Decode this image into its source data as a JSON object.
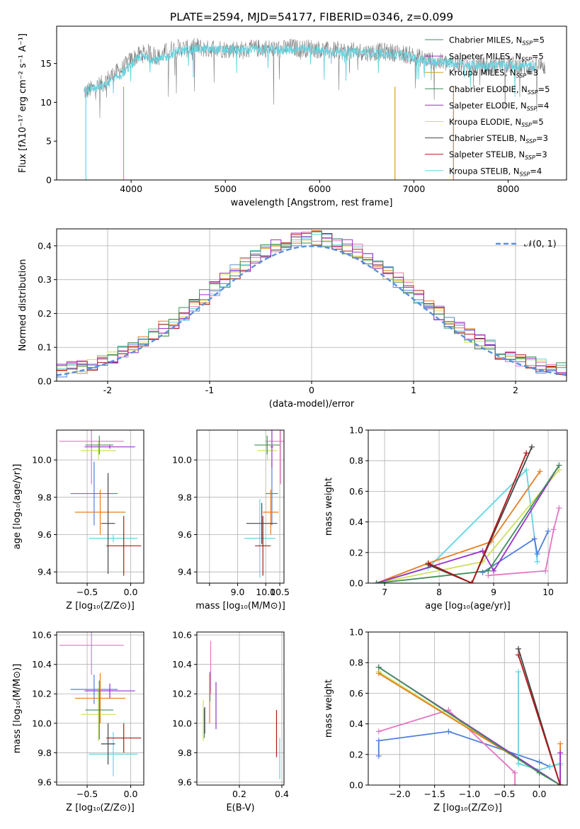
{
  "title": "PLATE=2594, MJD=54177, FIBERID=0346, z=0.099",
  "palette": [
    "#7f7f7f",
    "#e67e22",
    "#d4a017",
    "#3f8f5a",
    "#9b30c8",
    "#cfe05a",
    "#444444",
    "#b01818",
    "#66d3e0",
    "#e377c2",
    "#4f7fdc"
  ],
  "chart_data": [
    {
      "id": "spectrum",
      "type": "line",
      "title": "PLATE=2594, MJD=54177, FIBERID=0346, z=0.099",
      "xlabel": "wavelength [Angstrom, rest frame]",
      "ylabel": "Flux [fλ10⁻¹⁷ erg cm⁻² s⁻¹ A⁻¹]",
      "xlim": [
        3210,
        8620
      ],
      "ylim": [
        0,
        19.8
      ],
      "xticks": [
        4000,
        5000,
        6000,
        7000,
        8000
      ],
      "yticks": [
        0,
        5,
        10,
        15
      ],
      "grid": false,
      "legend_placement": "right",
      "legend": [
        {
          "label": "Chabrier MILES, N_SSP=5",
          "text": "Chabrier MILES, N",
          "sub": "SSP",
          "tail": "=5",
          "color": "#3f8f5a"
        },
        {
          "label": "Salpeter MILES, N_SSP=5",
          "text": "Salpeter MILES, N",
          "sub": "SSP",
          "tail": "=5",
          "color": "#9b30c8"
        },
        {
          "label": "Kroupa MILES, N_SSP=3",
          "text": "Kroupa MILES, N",
          "sub": "SSP",
          "tail": "=3",
          "color": "#d4a017"
        },
        {
          "label": "Chabrier ELODIE, N_SSP=5",
          "text": "Chabrier ELODIE, N",
          "sub": "SSP",
          "tail": "=5",
          "color": "#3f8f5a"
        },
        {
          "label": "Salpeter ELODIE, N_SSP=4",
          "text": "Salpeter ELODIE, N",
          "sub": "SSP",
          "tail": "=4",
          "color": "#9b30c8"
        },
        {
          "label": "Kroupa ELODIE, N_SSP=5",
          "text": "Kroupa ELODIE, N",
          "sub": "SSP",
          "tail": "=5",
          "color": "#cfe05a"
        },
        {
          "label": "Chabrier STELIB, N_SSP=3",
          "text": "Chabrier STELIB, N",
          "sub": "SSP",
          "tail": "=3",
          "color": "#444444"
        },
        {
          "label": "Salpeter STELIB, N_SSP=3",
          "text": "Salpeter STELIB, N",
          "sub": "SSP",
          "tail": "=3",
          "color": "#b01818"
        },
        {
          "label": "Kroupa STELIB, N_SSP=4",
          "text": "Kroupa STELIB, N",
          "sub": "SSP",
          "tail": "=4",
          "color": "#66d3e0"
        }
      ],
      "series": [
        {
          "color": "#7f7f7f",
          "x": [
            3500,
            3600,
            3700,
            3800,
            3900,
            4000,
            4100,
            4200,
            4300,
            4400,
            4500,
            4600,
            4700,
            4800,
            4900,
            5000,
            5100,
            5200,
            5300,
            5400,
            5500,
            5600,
            5700,
            5800,
            5900,
            6000,
            6100,
            6200,
            6300,
            6400,
            6500,
            6600,
            6700,
            6800,
            6900,
            7000,
            7100,
            7200,
            7300,
            7400,
            7500,
            7600,
            7700,
            7800,
            7900,
            8000,
            8100,
            8200,
            8300,
            8400
          ],
          "y": [
            11.3,
            11.8,
            12.4,
            13.5,
            14.2,
            15.5,
            16.2,
            16.4,
            15.8,
            16.8,
            17.0,
            16.9,
            17.2,
            16.8,
            17.1,
            16.8,
            16.9,
            16.7,
            16.9,
            17.0,
            16.9,
            16.8,
            17.1,
            16.9,
            17.0,
            16.8,
            16.6,
            16.7,
            16.5,
            16.6,
            16.4,
            16.5,
            16.5,
            16.4,
            16.2,
            16.0,
            15.6,
            15.3,
            15.1,
            15.0,
            14.9,
            14.8,
            14.8,
            14.6,
            14.8,
            14.9,
            14.7,
            14.5,
            14.7,
            14.6
          ]
        },
        {
          "color": "#66d3e0",
          "x": [
            3500,
            3700,
            3900,
            4100,
            4300,
            4500,
            4700,
            4900,
            5100,
            5300,
            5500,
            5700,
            5900,
            6100,
            6300,
            6500,
            6700,
            6900,
            7100,
            7300,
            7500,
            7700,
            7900,
            8100,
            8300
          ],
          "y": [
            11.6,
            12.0,
            13.6,
            15.9,
            15.4,
            16.6,
            16.9,
            16.8,
            16.7,
            16.8,
            16.7,
            16.8,
            16.8,
            16.5,
            16.4,
            16.4,
            16.3,
            16.0,
            15.4,
            15.1,
            14.9,
            14.7,
            14.8,
            14.7,
            14.6
          ]
        }
      ],
      "vlines": [
        {
          "x": 3520,
          "color": "#66d3e0"
        },
        {
          "x": 3920,
          "color": "#d4a017"
        },
        {
          "x": 6800,
          "color": "#d4a017"
        },
        {
          "x": 7420,
          "color": "#e67e22"
        }
      ]
    },
    {
      "id": "residuals",
      "type": "histogram",
      "xlabel": "(data-model)/error",
      "ylabel": "Normed distribution",
      "xlim": [
        -2.5,
        2.5
      ],
      "ylim": [
        0,
        0.45
      ],
      "xticks": [
        -2,
        -1,
        0,
        1,
        2
      ],
      "yticks": [
        0.0,
        0.1,
        0.2,
        0.3,
        0.4
      ],
      "grid": true,
      "legend_placement": "top-right",
      "legend": [
        {
          "label": "𝒩(0, 1)",
          "color": "#5b8fdc"
        }
      ],
      "bin_width": 0.1,
      "series": [
        {
          "color": "#4f7fdc"
        },
        {
          "color": "#e67e22"
        },
        {
          "color": "#e377c2"
        },
        {
          "color": "#cfe05a"
        },
        {
          "color": "#66d3e0"
        },
        {
          "color": "#b01818"
        },
        {
          "color": "#9b30c8"
        },
        {
          "color": "#3f8f5a"
        }
      ],
      "curve": {
        "label": "𝒩(0, 1)",
        "mean": 0,
        "sigma": 1,
        "color": "#5b8fdc"
      }
    },
    {
      "id": "age-vs-z",
      "type": "errorbar",
      "xlabel": "Z [log₁₀(Z/Z⊙)]",
      "ylabel": "age  [log₁₀(age/yr)]",
      "xlim": [
        -0.85,
        0.15
      ],
      "ylim": [
        9.34,
        10.16
      ],
      "xticks": [
        -0.5,
        0.0
      ],
      "xticklabels": [
        "−0.5",
        "0.0"
      ],
      "yticks": [
        9.4,
        9.6,
        9.8,
        10.0
      ],
      "grid": true,
      "points": [
        {
          "x": -0.42,
          "y": 9.82,
          "xerr": 0.27,
          "yerr": 0.17,
          "color": "#4f7fdc"
        },
        {
          "x": -0.35,
          "y": 9.72,
          "xerr": 0.29,
          "yerr": 0.12,
          "color": "#e67e22"
        },
        {
          "x": -0.45,
          "y": 10.1,
          "xerr": 0.37,
          "yerr": 0.23,
          "color": "#e377c2"
        },
        {
          "x": -0.37,
          "y": 10.05,
          "xerr": 0.2,
          "yerr": 0.05,
          "color": "#cfe05a"
        },
        {
          "x": -0.2,
          "y": 9.58,
          "xerr": 0.28,
          "yerr": 0.02,
          "color": "#66d3e0"
        },
        {
          "x": -0.08,
          "y": 9.54,
          "xerr": 0.2,
          "yerr": 0.16,
          "color": "#b01818"
        },
        {
          "x": -0.24,
          "y": 10.07,
          "xerr": 0.29,
          "yerr": 0.01,
          "color": "#9b30c8"
        },
        {
          "x": -0.36,
          "y": 10.08,
          "xerr": 0.16,
          "yerr": 0.05,
          "color": "#3f8f5a"
        },
        {
          "x": -0.26,
          "y": 9.66,
          "xerr": 0.08,
          "yerr": 0.27,
          "color": "#444444"
        }
      ]
    },
    {
      "id": "age-vs-mass",
      "type": "errorbar",
      "xlabel": "mass [log₁₀(M/M⊙)]",
      "ylabel": "",
      "xlim": [
        7.55,
        10.65
      ],
      "ylim": [
        9.34,
        10.16
      ],
      "xticks": [
        8,
        9,
        10,
        10.5
      ],
      "xticklabels": [
        "",
        "9.0",
        "10.0",
        "10.5"
      ],
      "yticks": [
        9.4,
        9.6,
        9.8,
        10.0
      ],
      "grid": true,
      "points": [
        {
          "x": 10.22,
          "y": 9.82,
          "xerr": 0.22,
          "yerr": 0.17,
          "color": "#4f7fdc"
        },
        {
          "x": 10.18,
          "y": 9.72,
          "xerr": 0.28,
          "yerr": 0.12,
          "color": "#e67e22"
        },
        {
          "x": 10.53,
          "y": 10.1,
          "xerr": 0.55,
          "yerr": 0.23,
          "color": "#e377c2"
        },
        {
          "x": 10.06,
          "y": 10.05,
          "xerr": 0.35,
          "yerr": 0.05,
          "color": "#cfe05a"
        },
        {
          "x": 9.79,
          "y": 9.58,
          "xerr": 0.55,
          "yerr": 0.21,
          "color": "#66d3e0"
        },
        {
          "x": 9.9,
          "y": 9.54,
          "xerr": 0.28,
          "yerr": 0.16,
          "color": "#b01818"
        },
        {
          "x": 10.22,
          "y": 10.07,
          "xerr": 0.05,
          "yerr": 0.11,
          "color": "#9b30c8"
        },
        {
          "x": 10.05,
          "y": 10.08,
          "xerr": 0.45,
          "yerr": 0.05,
          "color": "#3f8f5a"
        },
        {
          "x": 9.86,
          "y": 9.66,
          "xerr": 0.55,
          "yerr": 0.11,
          "color": "#444444"
        }
      ]
    },
    {
      "id": "weight-vs-age",
      "type": "line",
      "xlabel": "age  [log₁₀(age/yr)]",
      "ylabel": "mass weight",
      "xlim": [
        6.7,
        10.35
      ],
      "ylim": [
        0,
        1.0
      ],
      "xticks": [
        7,
        8,
        9,
        10
      ],
      "yticks": [
        0.0,
        0.2,
        0.4,
        0.6,
        0.8,
        1.0
      ],
      "grid": true,
      "series": [
        {
          "color": "#66d3e0",
          "x": [
            6.85,
            7.8,
            9.6,
            9.8
          ],
          "y": [
            0.0,
            0.1,
            0.74,
            0.14
          ]
        },
        {
          "color": "#4f7fdc",
          "x": [
            8.8,
            9.75,
            9.8,
            10.0
          ],
          "y": [
            0.07,
            0.29,
            0.19,
            0.34
          ]
        },
        {
          "color": "#e67e22",
          "x": [
            6.85,
            7.8,
            8.95,
            9.85
          ],
          "y": [
            0.0,
            0.13,
            0.27,
            0.73
          ]
        },
        {
          "color": "#e377c2",
          "x": [
            8.9,
            9.95,
            10.1,
            10.2
          ],
          "y": [
            0.05,
            0.08,
            0.35,
            0.49
          ]
        },
        {
          "color": "#cfe05a",
          "x": [
            6.85,
            8.8,
            10.2
          ],
          "y": [
            0.0,
            0.14,
            0.74
          ]
        },
        {
          "color": "#9b30c8",
          "x": [
            6.85,
            8.8,
            9.0,
            10.2
          ],
          "y": [
            0.0,
            0.21,
            0.08,
            0.77
          ]
        },
        {
          "color": "#3f8f5a",
          "x": [
            6.85,
            8.9,
            10.2
          ],
          "y": [
            0.0,
            0.08,
            0.77
          ]
        },
        {
          "color": "#444444",
          "x": [
            7.8,
            8.6,
            9.7
          ],
          "y": [
            0.12,
            0.0,
            0.89
          ]
        },
        {
          "color": "#b01818",
          "x": [
            7.8,
            8.6,
            9.6
          ],
          "y": [
            0.13,
            0.0,
            0.85
          ]
        }
      ]
    },
    {
      "id": "mass-vs-z",
      "type": "errorbar",
      "xlabel": "Z [log₁₀(Z/Z⊙)]",
      "ylabel": "mass [log₁₀(M/M⊙)]",
      "xlim": [
        -0.85,
        0.15
      ],
      "ylim": [
        9.58,
        10.62
      ],
      "xticks": [
        -0.5,
        0.0
      ],
      "xticklabels": [
        "−0.5",
        "0.0"
      ],
      "yticks": [
        9.6,
        9.8,
        10.0,
        10.2,
        10.4,
        10.6
      ],
      "grid": true,
      "points": [
        {
          "x": -0.42,
          "y": 10.23,
          "xerr": 0.27,
          "yerr": 0.1,
          "color": "#4f7fdc"
        },
        {
          "x": -0.35,
          "y": 10.17,
          "xerr": 0.29,
          "yerr": 0.17,
          "color": "#e67e22"
        },
        {
          "x": -0.45,
          "y": 10.53,
          "xerr": 0.37,
          "yerr": 0.2,
          "color": "#e377c2"
        },
        {
          "x": -0.37,
          "y": 10.06,
          "xerr": 0.2,
          "yerr": 0.18,
          "color": "#cfe05a"
        },
        {
          "x": -0.2,
          "y": 9.79,
          "xerr": 0.28,
          "yerr": 0.15,
          "color": "#66d3e0"
        },
        {
          "x": -0.08,
          "y": 9.9,
          "xerr": 0.2,
          "yerr": 0.1,
          "color": "#b01818"
        },
        {
          "x": -0.24,
          "y": 10.22,
          "xerr": 0.29,
          "yerr": 0.05,
          "color": "#9b30c8"
        },
        {
          "x": -0.36,
          "y": 10.09,
          "xerr": 0.16,
          "yerr": 0.2,
          "color": "#3f8f5a"
        },
        {
          "x": -0.26,
          "y": 9.86,
          "xerr": 0.08,
          "yerr": 0.14,
          "color": "#444444"
        }
      ]
    },
    {
      "id": "mass-vs-ebv",
      "type": "errorbar",
      "xlabel": "E(B-V)",
      "ylabel": "",
      "xlim": [
        0.0,
        0.41
      ],
      "ylim": [
        9.58,
        10.62
      ],
      "xticks": [
        0.2,
        0.4
      ],
      "xticklabels": [
        "0.2",
        "0.4"
      ],
      "yticks": [
        9.6,
        9.8,
        10.0,
        10.2,
        10.4,
        10.6
      ],
      "grid": true,
      "points": [
        {
          "x": 0.062,
          "y": 10.25,
          "xerr": 0,
          "yerr": 0.1,
          "color": "#4f7fdc"
        },
        {
          "x": 0.06,
          "y": 10.17,
          "xerr": 0,
          "yerr": 0.17,
          "color": "#e67e22"
        },
        {
          "x": 0.065,
          "y": 10.38,
          "xerr": 0,
          "yerr": 0.18,
          "color": "#e377c2"
        },
        {
          "x": 0.03,
          "y": 10.02,
          "xerr": 0,
          "yerr": 0.14,
          "color": "#cfe05a"
        },
        {
          "x": 0.39,
          "y": 9.76,
          "xerr": 0,
          "yerr": 0.14,
          "color": "#66d3e0"
        },
        {
          "x": 0.375,
          "y": 9.93,
          "xerr": 0,
          "yerr": 0.16,
          "color": "#b01818"
        },
        {
          "x": 0.09,
          "y": 10.12,
          "xerr": 0,
          "yerr": 0.16,
          "color": "#9b30c8"
        },
        {
          "x": 0.035,
          "y": 10.0,
          "xerr": 0,
          "yerr": 0.1,
          "color": "#3f8f5a"
        },
        {
          "x": 0.037,
          "y": 10.02,
          "xerr": 0,
          "yerr": 0.09,
          "color": "#444444"
        }
      ]
    },
    {
      "id": "weight-vs-z",
      "type": "line",
      "xlabel": "Z [log₁₀(Z/Z⊙)]",
      "ylabel": "mass weight",
      "xlim": [
        -2.45,
        0.4
      ],
      "ylim": [
        0,
        1.0
      ],
      "xticks": [
        -2.0,
        -1.5,
        -1.0,
        -0.5,
        0.0
      ],
      "xticklabels": [
        "−2.0",
        "−1.5",
        "−1.0",
        "−0.5",
        "0.0"
      ],
      "yticks": [
        0.0,
        0.2,
        0.4,
        0.6,
        0.8,
        1.0
      ],
      "grid": true,
      "series": [
        {
          "color": "#4f7fdc",
          "x": [
            -2.3,
            -2.3,
            -1.3,
            0.0,
            0.15
          ],
          "y": [
            0.19,
            0.29,
            0.35,
            0.15,
            0.12
          ]
        },
        {
          "color": "#e377c2",
          "x": [
            -2.3,
            -1.3,
            -0.35,
            -0.35
          ],
          "y": [
            0.35,
            0.49,
            0.08,
            0.0
          ]
        },
        {
          "color": "#66d3e0",
          "x": [
            -0.3,
            -0.3,
            0.0,
            0.15,
            0.3
          ],
          "y": [
            0.74,
            0.14,
            0.1,
            0.12,
            0.14
          ]
        },
        {
          "color": "#cfe05a",
          "x": [
            -2.3,
            0.3,
            0.3
          ],
          "y": [
            0.74,
            0.0,
            0.13
          ]
        },
        {
          "color": "#e67e22",
          "x": [
            -2.3,
            0.3,
            0.3
          ],
          "y": [
            0.73,
            0.0,
            0.27
          ]
        },
        {
          "color": "#9b30c8",
          "x": [
            -2.3,
            0.3,
            0.3
          ],
          "y": [
            0.77,
            0.0,
            0.21
          ]
        },
        {
          "color": "#3f8f5a",
          "x": [
            -2.3,
            0.0,
            0.3
          ],
          "y": [
            0.77,
            0.08,
            0.0
          ]
        },
        {
          "color": "#444444",
          "x": [
            -0.3,
            0.3
          ],
          "y": [
            0.89,
            0.0
          ]
        },
        {
          "color": "#b01818",
          "x": [
            -0.3,
            0.3
          ],
          "y": [
            0.85,
            0.0
          ]
        }
      ]
    }
  ]
}
